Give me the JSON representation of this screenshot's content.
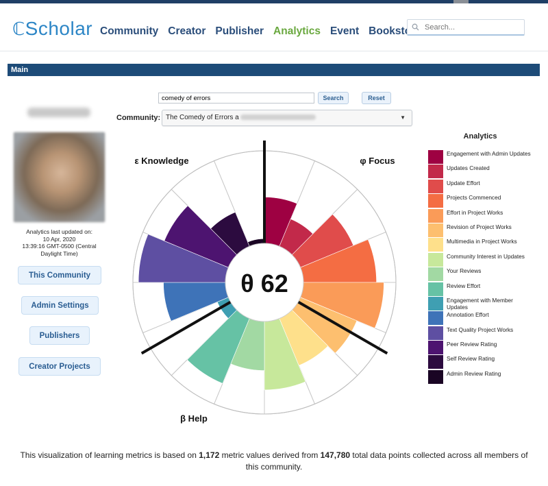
{
  "header": {
    "logo_glyph": "ℂ",
    "logo_text": "Scholar",
    "nav": [
      {
        "label": "Community",
        "active": false
      },
      {
        "label": "Creator",
        "active": false
      },
      {
        "label": "Publisher",
        "active": false
      },
      {
        "label": "Analytics",
        "active": true
      },
      {
        "label": "Event",
        "active": false
      },
      {
        "label": "Bookstore",
        "active": false
      }
    ],
    "search_placeholder": "Search..."
  },
  "main_bar": {
    "label": "Main"
  },
  "query": {
    "value": "comedy of errors",
    "search_label": "Search",
    "reset_label": "Reset"
  },
  "community": {
    "label": "Community:",
    "selected": "The Comedy of Errors a"
  },
  "sidebar": {
    "updated_text": "Analytics last updated on:\n10 Apr, 2020\n13:39:16 GMT-0500 (Central Daylight Time)",
    "buttons": [
      "This Community",
      "Admin Settings",
      "Publishers",
      "Creator Projects"
    ]
  },
  "chart": {
    "center_text": "θ 62",
    "sections": [
      {
        "label": "ε Knowledge"
      },
      {
        "label": "φ Focus"
      },
      {
        "label": "β Help"
      }
    ]
  },
  "chart_data": {
    "type": "radial-bar",
    "max": 1.0,
    "center_value": 62,
    "metrics": [
      {
        "name": "Engagement with Admin Updates",
        "value": 0.5,
        "color": "#9e0142"
      },
      {
        "name": "Updates Created",
        "value": 0.32,
        "color": "#c2294a"
      },
      {
        "name": "Update Effort",
        "value": 0.62,
        "color": "#e04c4b"
      },
      {
        "name": "Projects Commenced",
        "value": 0.79,
        "color": "#f46d43"
      },
      {
        "name": "Effort in Project Works",
        "value": 0.87,
        "color": "#fa9b58"
      },
      {
        "name": "Revision of Project Works",
        "value": 0.66,
        "color": "#fdbf6f"
      },
      {
        "name": "Multimedia in Project Works",
        "value": 0.55,
        "color": "#fee08b"
      },
      {
        "name": "Community Interest in Updates",
        "value": 0.74,
        "color": "#c7e89b"
      },
      {
        "name": "Your Reviews",
        "value": 0.53,
        "color": "#a2d9a3"
      },
      {
        "name": "Review Effort",
        "value": 0.76,
        "color": "#66c2a5"
      },
      {
        "name": "Engagement with Member Updates",
        "value": 0.13,
        "color": "#3f9fb2"
      },
      {
        "name": "Annotation Effort",
        "value": 0.67,
        "color": "#3e73b8"
      },
      {
        "name": "Text Quality Project Works",
        "value": 0.94,
        "color": "#5e4fa2"
      },
      {
        "name": "Peer Review Rating",
        "value": 0.75,
        "color": "#4d1470"
      },
      {
        "name": "Self Review Rating",
        "value": 0.4,
        "color": "#2c0b3f"
      },
      {
        "name": "Admin Review Rating",
        "value": 0.05,
        "color": "#1a0524"
      }
    ]
  },
  "legend": {
    "title": "Analytics"
  },
  "footer": {
    "text_1": "This visualization of learning metrics is based on ",
    "count_1": "1,172",
    "text_2": " metric values derived from ",
    "count_2": "147,780",
    "text_3": " total data points collected across all members of this community."
  }
}
